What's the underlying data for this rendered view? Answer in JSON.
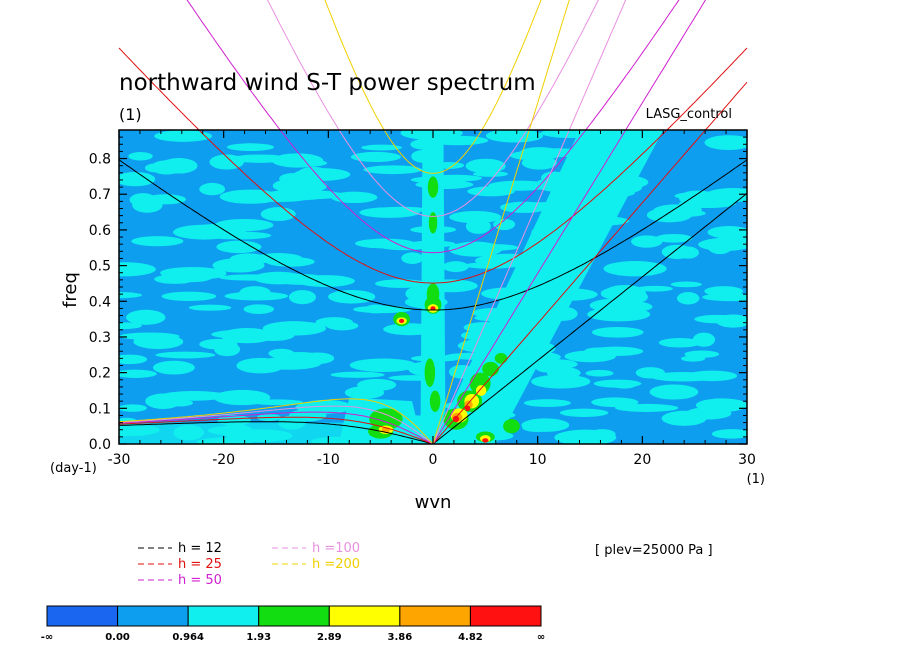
{
  "chart_data": {
    "type": "heatmap",
    "title": "northward wind S-T power spectrum",
    "subtitle": "(1)",
    "annotation_right": "LASG_control",
    "annotation_bottom": "[ plev=25000 Pa ]",
    "xlabel": "wvn",
    "ylabel": "freq",
    "x_unit": "(1)",
    "y_unit": "(day-1)",
    "xlim": [
      -30,
      30
    ],
    "ylim": [
      0,
      0.88
    ],
    "x_ticks": [
      -30,
      -20,
      -10,
      0,
      10,
      20,
      30
    ],
    "x_tick_labels": [
      "-30",
      "-20",
      "-10",
      "0",
      "10",
      "20",
      "30"
    ],
    "y_ticks": [
      0,
      0.1,
      0.2,
      0.3,
      0.4,
      0.5,
      0.6,
      0.7,
      0.8
    ],
    "y_tick_labels": [
      "0.0",
      "0.1",
      "0.2",
      "0.3",
      "0.4",
      "0.5",
      "0.6",
      "0.7",
      "0.8"
    ],
    "grid": false,
    "colorbar": {
      "labels": [
        "-∞",
        "0.00",
        "0.964",
        "1.93",
        "2.89",
        "3.86",
        "4.82",
        "∞"
      ],
      "colors": [
        "#1a66f0",
        "#0e9ef0",
        "#11eeee",
        "#11dd11",
        "#ffff00",
        "#ffa500",
        "#ff1111"
      ]
    },
    "dispersion_curves": [
      {
        "name": "h = 12",
        "color": "#000000"
      },
      {
        "name": "h = 25",
        "color": "#e01010"
      },
      {
        "name": "h = 50",
        "color": "#d020d0"
      },
      {
        "name": "h =100",
        "color": "#e890e0"
      },
      {
        "name": "h =200",
        "color": "#f0d000"
      }
    ],
    "color_regions": [
      {
        "level": 3,
        "x_range": [
          -1,
          1
        ],
        "y_range": [
          0.0,
          0.75
        ],
        "note": "green stripe along k=0"
      },
      {
        "level": 3,
        "x_range": [
          -6,
          -3
        ],
        "y_range": [
          0.03,
          0.11
        ],
        "note": "green blob"
      },
      {
        "level": 3,
        "x_range": [
          1,
          7
        ],
        "y_range": [
          0.02,
          0.25
        ],
        "note": "green band along Kelvin branch"
      },
      {
        "level": 4,
        "x_range": [
          2,
          6
        ],
        "y_range": [
          0.06,
          0.16
        ],
        "note": "yellow"
      },
      {
        "level": 6,
        "x_range": [
          2,
          4
        ],
        "y_range": [
          0.06,
          0.1
        ],
        "note": "red"
      },
      {
        "level": 6,
        "x_range": [
          -3,
          -2
        ],
        "y_range": [
          0.33,
          0.36
        ],
        "note": "red"
      },
      {
        "level": 6,
        "x_range": [
          -0.5,
          0.5
        ],
        "y_range": [
          0.37,
          0.39
        ],
        "note": "red"
      }
    ]
  }
}
